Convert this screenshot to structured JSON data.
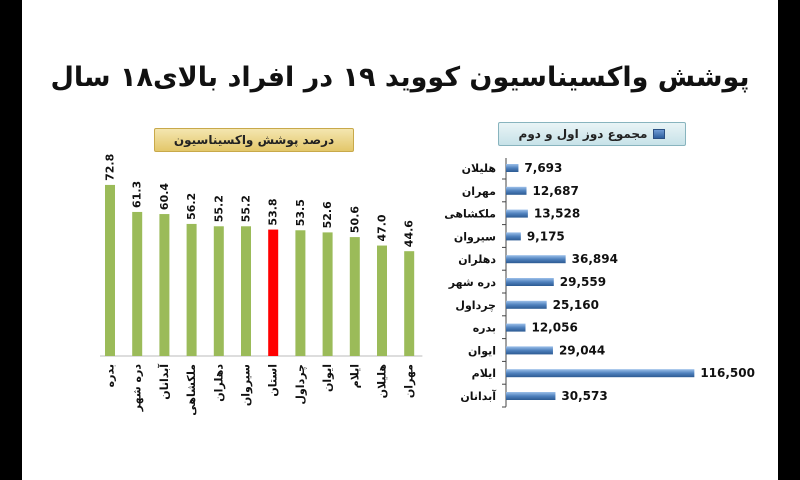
{
  "title": "پوشش واکسیناسیون کووید ۱۹ در افراد بالای۱۸ سال",
  "colors": {
    "green_bar": "#9bbb59",
    "highlight_bar": "#ff0000",
    "blue_bar": "#4f81bd"
  },
  "chart_data": [
    {
      "type": "bar",
      "orientation": "vertical",
      "legend": "درصد پوشش واکسیناسیون",
      "categories": [
        "بدره",
        "دره شهر",
        "آبدانان",
        "ملکشاهی",
        "دهلران",
        "سیروان",
        "استان",
        "چرداول",
        "ایوان",
        "ایلام",
        "هلیلان",
        "مهران"
      ],
      "values": [
        72.8,
        61.3,
        60.4,
        56.2,
        55.2,
        55.2,
        53.8,
        53.5,
        52.6,
        50.6,
        47.0,
        44.6
      ],
      "value_labels": [
        "72.8",
        "61.3",
        "60.4",
        "56.2",
        "55.2",
        "55.2",
        "53.8",
        "53.5",
        "52.6",
        "50.6",
        "47.0",
        "44.6"
      ],
      "highlight_category": "استان",
      "ylim": [
        0,
        80
      ],
      "grid": false
    },
    {
      "type": "bar",
      "orientation": "horizontal",
      "legend": "مجموع دوز اول و دوم",
      "categories": [
        "هلیلان",
        "مهران",
        "ملکشاهی",
        "سیروان",
        "دهلران",
        "دره شهر",
        "چرداول",
        "بدره",
        "ایوان",
        "ایلام",
        "آبدانان"
      ],
      "values": [
        7693,
        12687,
        13528,
        9175,
        36894,
        29559,
        25160,
        12056,
        29044,
        116500,
        30573
      ],
      "value_labels": [
        "7,693",
        "12,687",
        "13,528",
        "9,175",
        "36,894",
        "29,559",
        "25,160",
        "12,056",
        "29,044",
        "116,500",
        "30,573"
      ],
      "xlim": [
        0,
        120000
      ],
      "grid": false
    }
  ]
}
